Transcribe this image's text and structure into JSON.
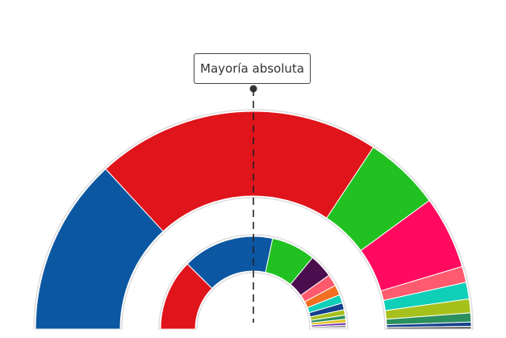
{
  "annotation": {
    "label": "Mayoría absoluta"
  },
  "chart_data": [
    {
      "type": "pie",
      "shape": "semicircle-donut",
      "ring": "outer",
      "series": [
        {
          "value": 25.5,
          "color": "#0c57a1"
        },
        {
          "value": 41.0,
          "color": "#e0141b"
        },
        {
          "value": 11.0,
          "color": "#21c121"
        },
        {
          "value": 10.5,
          "color": "#ff0a5e"
        },
        {
          "value": 2.3,
          "color": "#ff5a6e"
        },
        {
          "value": 2.4,
          "color": "#0fcfb8"
        },
        {
          "value": 2.0,
          "color": "#a6c11b"
        },
        {
          "value": 1.3,
          "color": "#2b8f5e"
        },
        {
          "value": 0.6,
          "color": "#14408c"
        },
        {
          "value": 0.4,
          "color": "#666666"
        }
      ]
    },
    {
      "type": "pie",
      "shape": "semicircle-donut",
      "ring": "inner",
      "series": [
        {
          "value": 21.0,
          "color": "#e0141b"
        },
        {
          "value": 27.0,
          "color": "#0c57a1"
        },
        {
          "value": 13.0,
          "color": "#21c121"
        },
        {
          "value": 7.0,
          "color": "#4a0d4e"
        },
        {
          "value": 3.5,
          "color": "#ff5a6e"
        },
        {
          "value": 3.0,
          "color": "#f36f21"
        },
        {
          "value": 2.5,
          "color": "#0fcfb8"
        },
        {
          "value": 2.0,
          "color": "#14408c"
        },
        {
          "value": 1.6,
          "color": "#a6c11b"
        },
        {
          "value": 1.2,
          "color": "#2b8f5e"
        },
        {
          "value": 1.0,
          "color": "#e0c31a"
        },
        {
          "value": 0.8,
          "color": "#7a3bb0"
        },
        {
          "value": 0.6,
          "color": "#888888"
        },
        {
          "value": 0.5,
          "color": "#cccccc"
        }
      ]
    }
  ]
}
